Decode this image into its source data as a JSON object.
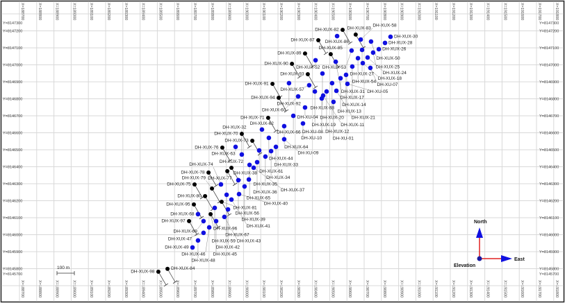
{
  "map": {
    "x_prefix": "X=",
    "y_prefix": "Y=",
    "x_ticks": [
      188700,
      188800,
      188900,
      189000,
      189100,
      189200,
      189300,
      189400,
      189500,
      189600,
      189700,
      189800,
      189900,
      190000,
      190100,
      190200,
      190300,
      190400,
      190500,
      190600,
      190700,
      190800,
      190900,
      191000,
      191100,
      191200,
      191300,
      191400,
      191500,
      191600,
      191700,
      191800
    ],
    "y_ticks": [
      8147300,
      8147200,
      8147100,
      8147000,
      8146900,
      8146800,
      8146700,
      8146600,
      8146500,
      8146400,
      8146300,
      8146200,
      8146100,
      8146000,
      8145900,
      8145800,
      8145700
    ],
    "scale_bar_label": "100 m",
    "scale_bar_length_m": 100,
    "compass": {
      "north_label": "North",
      "east_label": "East",
      "origin_label": "Elevation",
      "easting": 191370,
      "northing": 8145860
    },
    "colors": {
      "planned_hole": "#000000",
      "drilled_hole": "#1010e0",
      "grid": "#d8d8d8",
      "north_axis": "#e02020",
      "arrow": "#1010e0"
    }
  },
  "collars_black": [
    {
      "id": "DH-XUX-82",
      "e": 190575,
      "n": 8147206
    },
    {
      "id": "DH-XUX-83",
      "e": 190651,
      "n": 8147178
    },
    {
      "id": "DH-XUX-87",
      "e": 190434,
      "n": 8147145
    },
    {
      "id": "DH-XUX-89",
      "e": 190357,
      "n": 8147067
    },
    {
      "id": "DH-XUX-85",
      "e": 190506,
      "n": 8147063
    },
    {
      "id": "DH-XUX-90",
      "e": 190281,
      "n": 8147006
    },
    {
      "id": "DH-XUX-93",
      "e": 190373,
      "n": 8146945
    },
    {
      "id": "DH-XUX-91",
      "e": 190168,
      "n": 8146888
    },
    {
      "id": "DH-XUX-94",
      "e": 190204,
      "n": 8146806
    },
    {
      "id": "DH-XUX-71",
      "e": 190143,
      "n": 8146688
    },
    {
      "id": "DH-XUX-70",
      "e": 189990,
      "n": 8146594
    },
    {
      "id": "DH-XUX-73",
      "e": 190051,
      "n": 8146553
    },
    {
      "id": "DH-XUX-76",
      "e": 189877,
      "n": 8146513
    },
    {
      "id": "DH-XUX-72",
      "e": 189930,
      "n": 8146394
    },
    {
      "id": "DH-XUX-77",
      "e": 189906,
      "n": 8146374
    },
    {
      "id": "DH-XUX-78",
      "e": 189797,
      "n": 8146366
    },
    {
      "id": "DH-XUX-75",
      "e": 189716,
      "n": 8146296
    },
    {
      "id": "DH-XUX-79",
      "e": 189817,
      "n": 8146272
    },
    {
      "id": "DH-XUX-80",
      "e": 189777,
      "n": 8146227
    },
    {
      "id": "DH-XUX-81",
      "e": 189873,
      "n": 8146194
    },
    {
      "id": "DH-XUX-95",
      "e": 189712,
      "n": 8146178
    },
    {
      "id": "DH-XUX-96",
      "e": 189809,
      "n": 8146121
    },
    {
      "id": "DH-XUX-97",
      "e": 189684,
      "n": 8146080
    },
    {
      "id": "DH-XUX-98",
      "e": 189506,
      "n": 8145782
    },
    {
      "id": "DH-XUX-84",
      "e": 189559,
      "n": 8145799
    }
  ],
  "collars_blue": [
    {
      "id": "DH-XUX-86",
      "e": 190543,
      "n": 8147169
    },
    {
      "id": "DH-XUX-58",
      "e": 190680,
      "n": 8147149
    },
    {
      "id": "DH-XUX-50",
      "e": 190740,
      "n": 8147137
    },
    {
      "id": "DH-XUX-30",
      "e": 190853,
      "n": 8147165
    },
    {
      "id": "DH-XUX-28",
      "e": 190821,
      "n": 8147129
    },
    {
      "id": "DH-XUX-53",
      "e": 190627,
      "n": 8147084
    },
    {
      "id": "DH-XUX-27",
      "e": 190688,
      "n": 8147088
    },
    {
      "id": "DH-XUX-26",
      "e": 190785,
      "n": 8147092
    },
    {
      "id": "DH-XUX-25",
      "e": 190752,
      "n": 8147072
    },
    {
      "id": "DH-XUX-54",
      "e": 190664,
      "n": 8147039
    },
    {
      "id": "DH-XUX-24",
      "e": 190720,
      "n": 8147043
    },
    {
      "id": "DH-XUX-52",
      "e": 190418,
      "n": 8147027
    },
    {
      "id": "DH-XUX-31",
      "e": 190535,
      "n": 8147018
    },
    {
      "id": "DH-XUX-18",
      "e": 190692,
      "n": 8147010
    },
    {
      "id": "DH-XUX-17",
      "e": 190631,
      "n": 8146990
    },
    {
      "id": "DH-XU-07",
      "e": 190736,
      "n": 8146982
    },
    {
      "id": "DH-XUX-88",
      "e": 190458,
      "n": 8146949
    },
    {
      "id": "DH-XUX-14",
      "e": 190595,
      "n": 8146941
    },
    {
      "id": "DH-XUX-13",
      "e": 190563,
      "n": 8146921
    },
    {
      "id": "DH-XUX-20",
      "e": 190514,
      "n": 8146892
    },
    {
      "id": "DH-XU-05",
      "e": 190603,
      "n": 8146888
    },
    {
      "id": "DH-XUX-57",
      "e": 190381,
      "n": 8146880
    },
    {
      "id": "DH-XUX-92",
      "e": 190264,
      "n": 8146892
    },
    {
      "id": "DH-XUX-19",
      "e": 190414,
      "n": 8146843
    },
    {
      "id": "DH-XUX-12",
      "e": 190482,
      "n": 8146843
    },
    {
      "id": "DH-XUX-21",
      "e": 190539,
      "n": 8146847
    },
    {
      "id": "DH-XUX-11",
      "e": 190462,
      "n": 8146819
    },
    {
      "id": "DH-XU-08",
      "e": 190454,
      "n": 8146802
    },
    {
      "id": "DH-XU-01",
      "e": 190522,
      "n": 8146782
    },
    {
      "id": "DH-XUX-60",
      "e": 190317,
      "n": 8146814
    },
    {
      "id": "DH-XU-04",
      "e": 190357,
      "n": 8146749
    },
    {
      "id": "DH-XUX-66",
      "e": 190289,
      "n": 8146700
    },
    {
      "id": "DH-XU-10",
      "e": 190345,
      "n": 8146655
    },
    {
      "id": "DH-XUX-64",
      "e": 190236,
      "n": 8146639
    },
    {
      "id": "DH-XUX-62",
      "e": 190107,
      "n": 8146619
    },
    {
      "id": "DH-XUX-44",
      "e": 190147,
      "n": 8146570
    },
    {
      "id": "DH-XU-09",
      "e": 190236,
      "n": 8146562
    },
    {
      "id": "DH-XUX-63",
      "e": 189954,
      "n": 8146517
    },
    {
      "id": "DH-XUX-33",
      "e": 190188,
      "n": 8146517
    },
    {
      "id": "DH-XUX-32",
      "e": 189990,
      "n": 8146472
    },
    {
      "id": "DH-XUX-61",
      "e": 190091,
      "n": 8146496
    },
    {
      "id": "DH-XUX-34",
      "e": 190160,
      "n": 8146492
    },
    {
      "id": "DH-XUX-35",
      "e": 190127,
      "n": 8146460
    },
    {
      "id": "DH-XUX-36",
      "e": 190079,
      "n": 8146427
    },
    {
      "id": "DH-XUX-65",
      "e": 190035,
      "n": 8146411
    },
    {
      "id": "DH-XUX-37",
      "e": 190059,
      "n": 8146394
    },
    {
      "id": "DH-XUX-56",
      "e": 189970,
      "n": 8146321
    },
    {
      "id": "DH-XUX-38",
      "e": 190031,
      "n": 8146325
    },
    {
      "id": "DH-XUX-39",
      "e": 190006,
      "n": 8146284
    },
    {
      "id": "DH-XUX-74",
      "e": 189869,
      "n": 8146296
    },
    {
      "id": "DH-XUX-67",
      "e": 189902,
      "n": 8146235
    },
    {
      "id": "DH-XUX-40",
      "e": 189974,
      "n": 8146239
    },
    {
      "id": "DH-XUX-41",
      "e": 189930,
      "n": 8146207
    },
    {
      "id": "DH-XUX-59",
      "e": 189833,
      "n": 8146158
    },
    {
      "id": "DH-XUX-42",
      "e": 189910,
      "n": 8146149
    },
    {
      "id": "DH-XUX-68",
      "e": 189736,
      "n": 8146121
    },
    {
      "id": "DH-XUX-43",
      "e": 189889,
      "n": 8146105
    },
    {
      "id": "DH-XUX-69",
      "e": 189768,
      "n": 8146080
    },
    {
      "id": "DH-XUX-45",
      "e": 189841,
      "n": 8146080
    },
    {
      "id": "DH-XUX-46",
      "e": 189801,
      "n": 8146043
    },
    {
      "id": "DH-XUX-47",
      "e": 189768,
      "n": 8146011
    },
    {
      "id": "DH-XUX-48",
      "e": 189736,
      "n": 8145966
    },
    {
      "id": "DH-XUX-49",
      "e": 189704,
      "n": 8145925
    }
  ]
}
